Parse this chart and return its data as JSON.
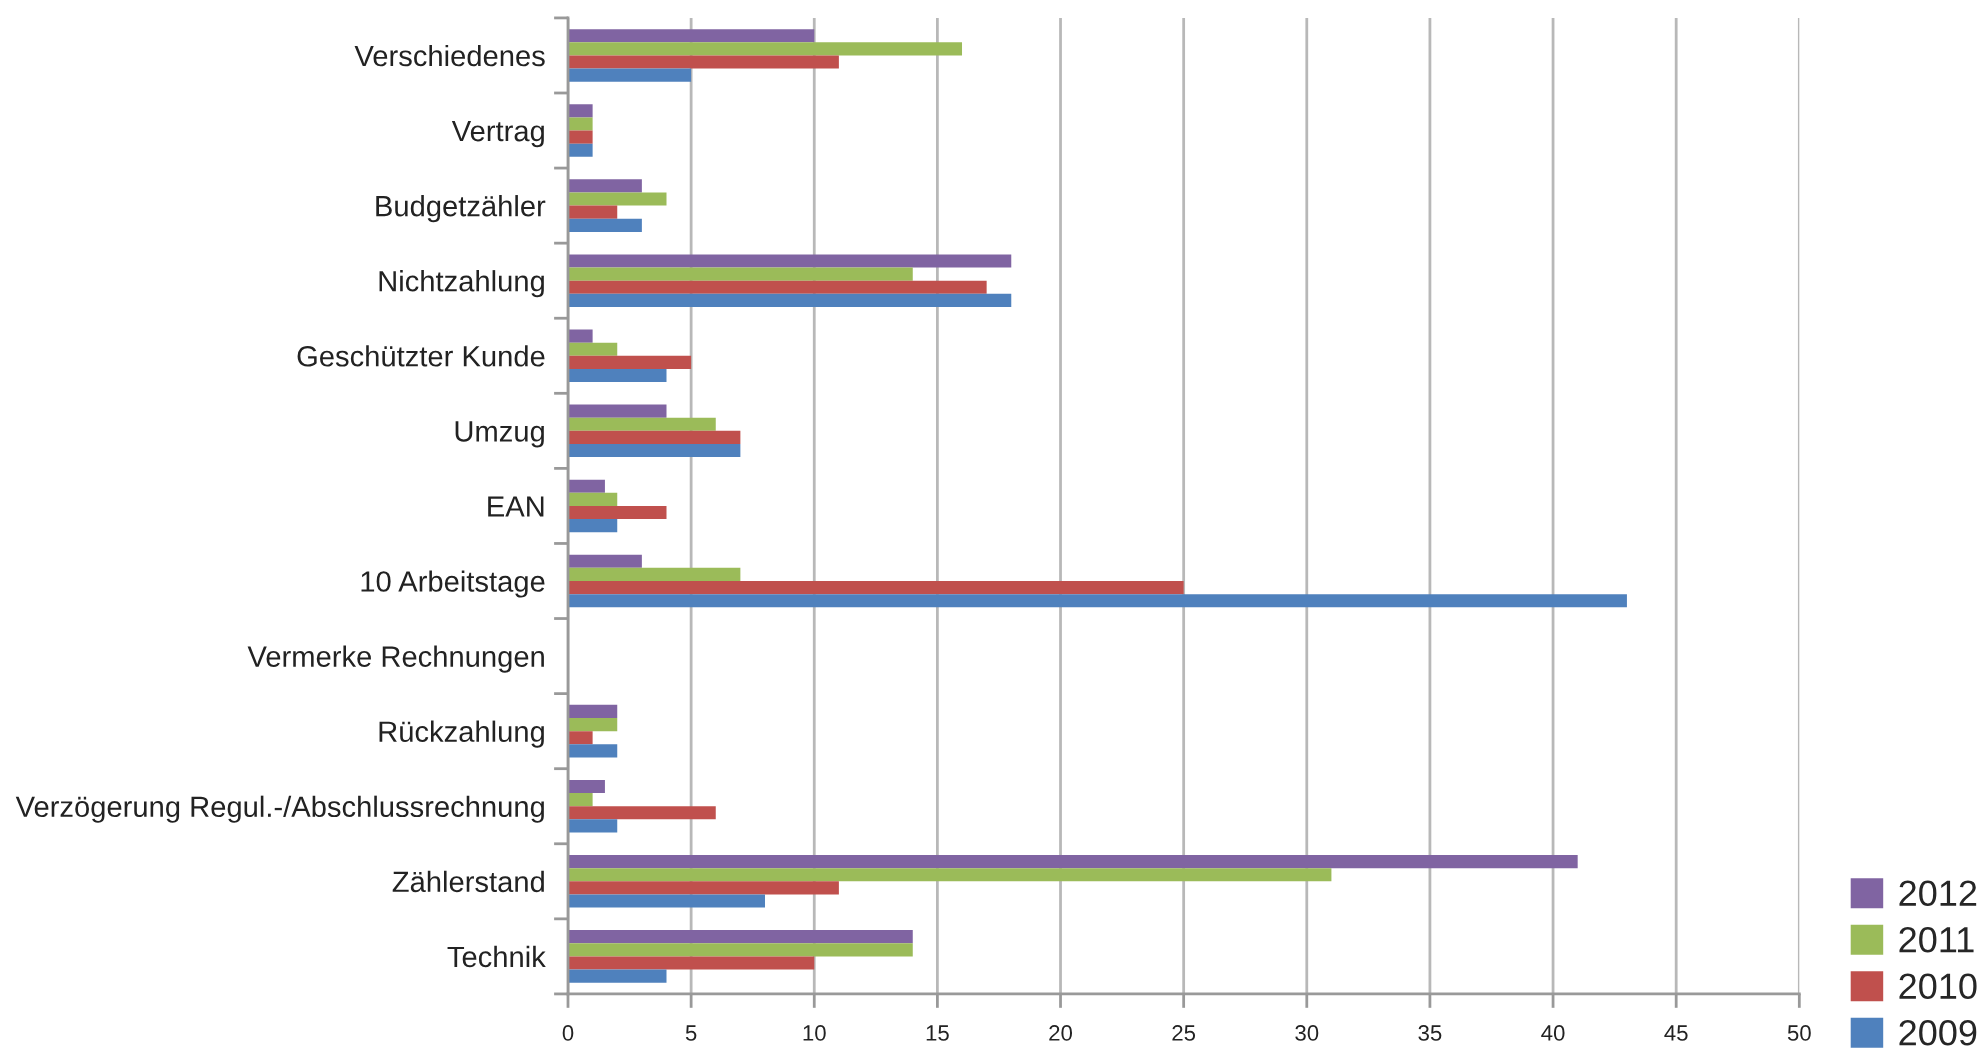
{
  "chart_data": {
    "type": "bar",
    "orientation": "horizontal",
    "categories": [
      "Verschiedenes",
      "Vertrag",
      "Budgetzähler",
      "Nichtzahlung",
      "Geschützter Kunde",
      "Umzug",
      "EAN",
      "10 Arbeitstage",
      "Vermerke Rechnungen",
      "Rückzahlung",
      "Verzögerung Regul.-/Abschlussrechnung",
      "Zählerstand",
      "Technik"
    ],
    "series": [
      {
        "name": "2012",
        "color": "#8064a2",
        "values": [
          10,
          1,
          3,
          18,
          1,
          4,
          1.5,
          3,
          null,
          2,
          1.5,
          41,
          14
        ]
      },
      {
        "name": "2011",
        "color": "#9bbb59",
        "values": [
          16,
          1,
          4,
          14,
          2,
          6,
          2,
          7,
          null,
          2,
          1,
          31,
          14
        ]
      },
      {
        "name": "2010",
        "color": "#c0504d",
        "values": [
          11,
          1,
          2,
          17,
          5,
          7,
          4,
          25,
          null,
          1,
          6,
          11,
          10
        ]
      },
      {
        "name": "2009",
        "color": "#4f81bd",
        "values": [
          5,
          1,
          3,
          18,
          4,
          7,
          2,
          43,
          null,
          2,
          2,
          8,
          4
        ]
      }
    ],
    "xlim": [
      0,
      50
    ],
    "xticks": [
      0,
      5,
      10,
      15,
      20,
      25,
      30,
      35,
      40,
      45,
      50
    ],
    "grid": "x",
    "legend": "bottom right"
  }
}
